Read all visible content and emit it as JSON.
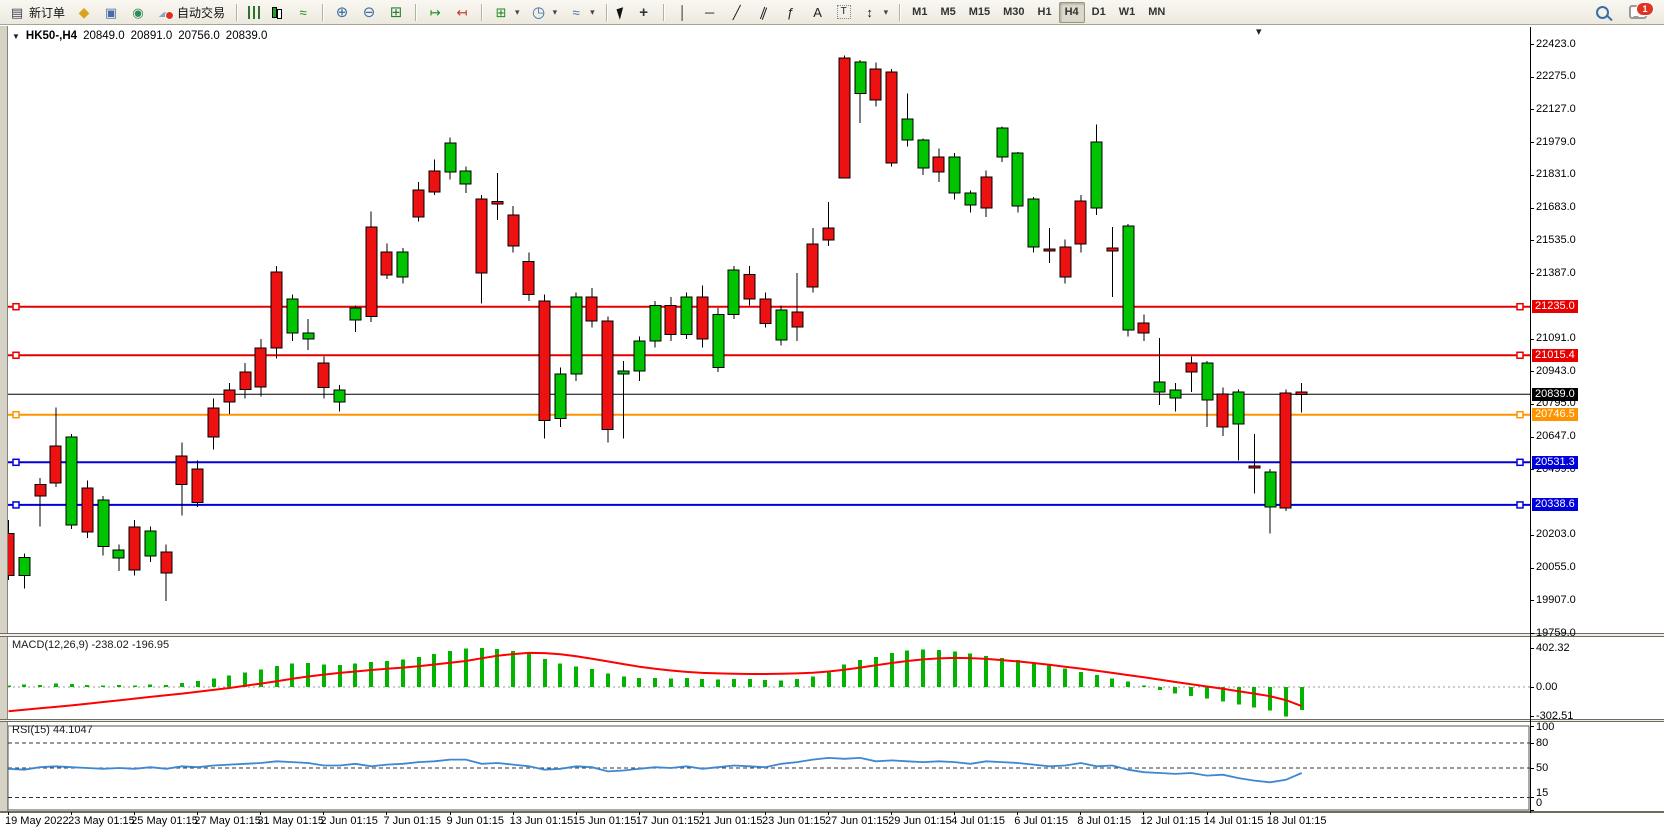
{
  "toolbar": {
    "new_order_label": "新订单",
    "autotrading_label": "自动交易",
    "timeframes": [
      "M1",
      "M5",
      "M15",
      "M30",
      "H1",
      "H4",
      "D1",
      "W1",
      "MN"
    ],
    "active_timeframe": "H4",
    "notification_badge": "1"
  },
  "icons": {
    "chart_menu": "▼",
    "dropdown": "▾",
    "doc": "▤",
    "diamond": "◆",
    "window": "▣",
    "signal": "◉",
    "cloud": "☁",
    "line_chart": "≈",
    "zoom_in": "⊕",
    "zoom_out": "⊖",
    "tile": "⊞",
    "auto_scroll": "↦",
    "chart_shift": "↤",
    "new_chart": "⊞",
    "clock": "◷",
    "indicators": "≈",
    "crosshair": "+",
    "vline": "│",
    "hline": "─",
    "trendline": "╱",
    "channel": "∥",
    "fibonacci": "ƒ",
    "text": "A",
    "text_label": "T",
    "arrows": "↕",
    "shift_marker": "▾"
  },
  "chart_header": {
    "symbol_period": "HK50-,H4",
    "open": "20849.0",
    "high": "20891.0",
    "low": "20756.0",
    "close": "20839.0"
  },
  "price_axis": {
    "ticks": [
      22423,
      22275,
      22127,
      21979,
      21831,
      21683,
      21535,
      21387,
      21091,
      20943,
      20795,
      20647,
      20499,
      20203,
      20055,
      19907,
      19759
    ]
  },
  "levels": [
    {
      "price": 21235.0,
      "label": "21235.0",
      "color": "#e60000"
    },
    {
      "price": 21015.4,
      "label": "21015.4",
      "color": "#e60000"
    },
    {
      "price": 20746.5,
      "label": "20746.5",
      "color": "#ff9400"
    },
    {
      "price": 20531.3,
      "label": "20531.3",
      "color": "#0000dd"
    },
    {
      "price": 20338.6,
      "label": "20338.6",
      "color": "#0000dd"
    }
  ],
  "current_price": {
    "price": 20839.0,
    "label": "20839.0",
    "color": "#000000"
  },
  "chart_data": {
    "type": "candlestick",
    "symbol": "HK50-",
    "period": "H4",
    "title": "HK50-,H4",
    "y_range": [
      19759,
      22423
    ],
    "up_color": "#00c400",
    "down_color": "#ee1111",
    "candles": [
      [
        20210,
        20270,
        20000,
        20020
      ],
      [
        20020,
        20120,
        19960,
        20100
      ],
      [
        20430,
        20460,
        20240,
        20380
      ],
      [
        20605,
        20780,
        20420,
        20437
      ],
      [
        20248,
        20660,
        20230,
        20646
      ],
      [
        20415,
        20450,
        20190,
        20216
      ],
      [
        20150,
        20380,
        20110,
        20360
      ],
      [
        20098,
        20160,
        20040,
        20134
      ],
      [
        20238,
        20270,
        20020,
        20044
      ],
      [
        20107,
        20240,
        20080,
        20220
      ],
      [
        20125,
        20160,
        19905,
        20030
      ],
      [
        20560,
        20620,
        20290,
        20430
      ],
      [
        20500,
        20540,
        20330,
        20350
      ],
      [
        20777,
        20820,
        20590,
        20646
      ],
      [
        20858,
        20890,
        20750,
        20804
      ],
      [
        20940,
        20980,
        20820,
        20860
      ],
      [
        21048,
        21090,
        20830,
        20872
      ],
      [
        21391,
        21420,
        21000,
        21048
      ],
      [
        21115,
        21290,
        21080,
        21269
      ],
      [
        21088,
        21180,
        21040,
        21115
      ],
      [
        20980,
        21010,
        20820,
        20870
      ],
      [
        20804,
        20880,
        20760,
        20858
      ],
      [
        21175,
        21240,
        21120,
        21229
      ],
      [
        21595,
        21665,
        21165,
        21190
      ],
      [
        21482,
        21520,
        21360,
        21378
      ],
      [
        21369,
        21500,
        21340,
        21482
      ],
      [
        21762,
        21800,
        21620,
        21640
      ],
      [
        21848,
        21900,
        21740,
        21753
      ],
      [
        21844,
        22000,
        21810,
        21975
      ],
      [
        21789,
        21870,
        21750,
        21848
      ],
      [
        21721,
        21740,
        21250,
        21387
      ],
      [
        21710,
        21839,
        21627,
        21700
      ],
      [
        21650,
        21690,
        21480,
        21510
      ],
      [
        21440,
        21480,
        21260,
        21290
      ],
      [
        21260,
        21290,
        20640,
        20720
      ],
      [
        20730,
        20960,
        20690,
        20930
      ],
      [
        20930,
        21300,
        20900,
        21280
      ],
      [
        21280,
        21320,
        21140,
        21170
      ],
      [
        21170,
        21190,
        20620,
        20680
      ],
      [
        20930,
        20990,
        20640,
        20945
      ],
      [
        20945,
        21100,
        20900,
        21080
      ],
      [
        21080,
        21260,
        21050,
        21240
      ],
      [
        21240,
        21280,
        21080,
        21110
      ],
      [
        21110,
        21300,
        21090,
        21280
      ],
      [
        21280,
        21330,
        21050,
        21090
      ],
      [
        20960,
        21230,
        20940,
        21200
      ],
      [
        21200,
        21420,
        21180,
        21400
      ],
      [
        21380,
        21420,
        21240,
        21270
      ],
      [
        21270,
        21300,
        21140,
        21160
      ],
      [
        21085,
        21240,
        21060,
        21220
      ],
      [
        21211,
        21387,
        21080,
        21143
      ],
      [
        21518,
        21591,
        21300,
        21324
      ],
      [
        21590,
        21709,
        21510,
        21536
      ],
      [
        22360,
        22370,
        21815,
        21818
      ],
      [
        22200,
        22350,
        22066,
        22341
      ],
      [
        22310,
        22340,
        22140,
        22170
      ],
      [
        22296,
        22310,
        21870,
        21885
      ],
      [
        21989,
        22200,
        21960,
        22084
      ],
      [
        21862,
        21995,
        21830,
        21989
      ],
      [
        21912,
        21950,
        21800,
        21844
      ],
      [
        21749,
        21930,
        21720,
        21912
      ],
      [
        21694,
        21760,
        21660,
        21749
      ],
      [
        21821,
        21850,
        21640,
        21681
      ],
      [
        21912,
        22050,
        21890,
        22043
      ],
      [
        21690,
        21935,
        21660,
        21930
      ],
      [
        21505,
        21730,
        21480,
        21722
      ],
      [
        21496,
        21591,
        21432,
        21492
      ],
      [
        21505,
        21540,
        21340,
        21369
      ],
      [
        21713,
        21740,
        21480,
        21518
      ],
      [
        21682,
        22060,
        21650,
        21980
      ],
      [
        21501,
        21596,
        21280,
        21488
      ],
      [
        21130,
        21610,
        21100,
        21600
      ],
      [
        21161,
        21200,
        21080,
        21116
      ],
      [
        20849,
        21093,
        20790,
        20894
      ],
      [
        20822,
        20890,
        20760,
        20858
      ],
      [
        20980,
        21010,
        20849,
        20939
      ],
      [
        20813,
        20990,
        20690,
        20980
      ],
      [
        20840,
        20870,
        20650,
        20690
      ],
      [
        20705,
        20860,
        20540,
        20850
      ],
      [
        20515,
        20660,
        20390,
        20512
      ],
      [
        20330,
        20500,
        20210,
        20487
      ],
      [
        20845,
        20860,
        20310,
        20325
      ],
      [
        20849,
        20891,
        20756,
        20839
      ]
    ]
  },
  "macd": {
    "label": "MACD(12,26,9) -238.02 -196.95",
    "axis_ticks": [
      402.32,
      0,
      -302.51
    ],
    "range": [
      -302.51,
      402.32
    ],
    "hist_color": "#00b400",
    "signal_color": "#ff0000",
    "histogram": [
      15,
      25,
      20,
      35,
      30,
      20,
      15,
      20,
      15,
      25,
      20,
      40,
      60,
      90,
      120,
      150,
      180,
      215,
      240,
      250,
      230,
      225,
      245,
      260,
      270,
      285,
      310,
      340,
      370,
      395,
      402,
      390,
      370,
      340,
      290,
      240,
      210,
      185,
      140,
      110,
      95,
      95,
      90,
      95,
      85,
      75,
      85,
      80,
      70,
      65,
      80,
      110,
      150,
      230,
      280,
      310,
      350,
      375,
      385,
      380,
      365,
      345,
      320,
      300,
      280,
      255,
      225,
      190,
      155,
      125,
      90,
      55,
      15,
      -30,
      -65,
      -95,
      -120,
      -150,
      -180,
      -210,
      -240,
      -302,
      -238
    ],
    "signal": [
      -250,
      -235,
      -220,
      -205,
      -190,
      -172,
      -155,
      -138,
      -120,
      -102,
      -85,
      -68,
      -50,
      -30,
      -10,
      12,
      35,
      60,
      85,
      108,
      128,
      145,
      160,
      175,
      188,
      200,
      215,
      232,
      250,
      268,
      296,
      322,
      340,
      352,
      350,
      338,
      318,
      292,
      264,
      236,
      210,
      188,
      170,
      156,
      146,
      140,
      136,
      134,
      134,
      136,
      140,
      148,
      160,
      178,
      200,
      224,
      248,
      268,
      285,
      295,
      300,
      298,
      290,
      278,
      264,
      248,
      230,
      210,
      190,
      168,
      146,
      123,
      100,
      76,
      52,
      28,
      5,
      -19,
      -43,
      -68,
      -95,
      -135,
      -197
    ]
  },
  "rsi": {
    "label": "RSI(15) 44.1047",
    "axis_ticks": [
      100,
      80,
      50,
      15,
      0
    ],
    "level_lines": [
      80,
      50,
      15
    ],
    "line_color": "#3d87d3",
    "values": [
      49,
      48,
      51,
      52,
      51,
      50,
      49,
      50,
      49,
      51,
      49,
      52,
      51,
      53,
      54,
      55,
      56,
      58,
      57,
      56,
      53,
      53,
      55,
      52,
      54,
      55,
      57,
      58,
      60,
      60,
      55,
      56,
      54,
      52,
      48,
      49,
      52,
      51,
      46,
      47,
      49,
      51,
      50,
      52,
      49,
      51,
      53,
      52,
      51,
      55,
      57,
      60,
      62,
      61,
      62,
      58,
      59,
      58,
      57,
      58,
      57,
      55,
      58,
      57,
      56,
      54,
      52,
      53,
      56,
      52,
      53,
      48,
      45,
      44,
      43,
      44,
      41,
      42,
      38,
      35,
      33,
      36,
      44
    ]
  },
  "time_axis": {
    "labels": [
      "19 May 2022",
      "23 May 01:15",
      "25 May 01:15",
      "27 May 01:15",
      "31 May 01:15",
      "2 Jun 01:15",
      "7 Jun 01:15",
      "9 Jun 01:15",
      "13 Jun 01:15",
      "15 Jun 01:15",
      "17 Jun 01:15",
      "21 Jun 01:15",
      "23 Jun 01:15",
      "27 Jun 01:15",
      "29 Jun 01:15",
      "4 Jul 01:15",
      "6 Jul 01:15",
      "8 Jul 01:15",
      "12 Jul 01:15",
      "14 Jul 01:15",
      "18 Jul 01:15"
    ]
  }
}
